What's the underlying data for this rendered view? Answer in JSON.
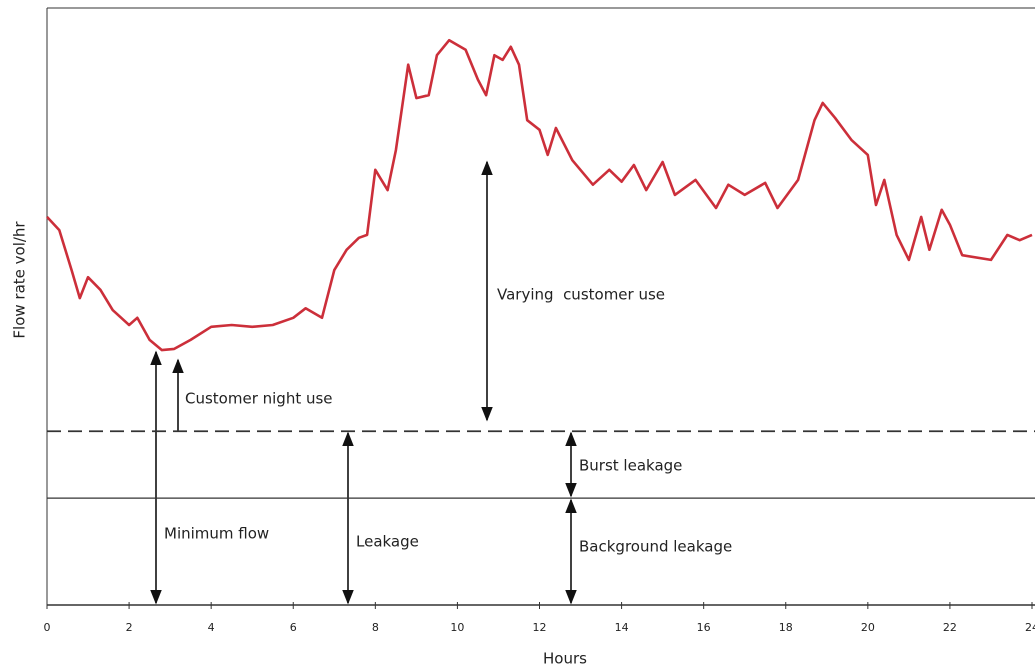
{
  "chart_data": {
    "type": "line",
    "x_label": "Hours",
    "y_label": "Flow rate vol/hr",
    "xlim": [
      0,
      24
    ],
    "xticks": [
      0,
      2,
      4,
      6,
      8,
      10,
      12,
      14,
      16,
      18,
      20,
      22,
      24
    ],
    "ylim": [
      0,
      100
    ],
    "x": [
      0,
      0.3,
      0.6,
      0.8,
      1.0,
      1.3,
      1.6,
      2.0,
      2.2,
      2.5,
      2.8,
      3.1,
      3.5,
      4.0,
      4.5,
      5.0,
      5.5,
      6.0,
      6.3,
      6.7,
      7.0,
      7.3,
      7.6,
      7.8,
      8.0,
      8.3,
      8.5,
      8.8,
      9.0,
      9.3,
      9.5,
      9.8,
      10.2,
      10.5,
      10.7,
      10.9,
      11.1,
      11.3,
      11.5,
      11.7,
      12.0,
      12.2,
      12.4,
      12.8,
      13.3,
      13.7,
      14.0,
      14.3,
      14.6,
      15.0,
      15.3,
      15.8,
      16.3,
      16.6,
      17.0,
      17.5,
      17.8,
      18.3,
      18.7,
      18.9,
      19.2,
      19.6,
      20.0,
      20.2,
      20.4,
      20.7,
      21.0,
      21.3,
      21.5,
      21.8,
      22.0,
      22.3,
      23.0,
      23.4,
      23.7,
      24.0
    ],
    "series": [
      {
        "color": "#cc2f3a",
        "values": [
          65.0,
          62.8,
          56.1,
          51.4,
          54.9,
          52.8,
          49.4,
          46.9,
          48.1,
          44.4,
          42.7,
          42.9,
          44.4,
          46.6,
          46.9,
          46.6,
          46.9,
          48.1,
          49.7,
          48.1,
          56.1,
          59.5,
          61.5,
          62.0,
          72.9,
          69.5,
          76.2,
          90.5,
          84.9,
          85.4,
          92.1,
          94.6,
          93.0,
          88.0,
          85.4,
          92.1,
          91.3,
          93.5,
          90.5,
          81.2,
          79.6,
          75.4,
          79.9,
          74.5,
          70.4,
          72.9,
          70.9,
          73.7,
          69.5,
          74.2,
          68.7,
          71.2,
          66.5,
          70.4,
          68.7,
          70.7,
          66.5,
          71.2,
          81.2,
          84.1,
          81.6,
          77.9,
          75.4,
          67.0,
          71.2,
          62.0,
          57.8,
          65.0,
          59.5,
          66.2,
          63.7,
          58.6,
          57.8,
          62.0,
          61.1,
          62.0
        ]
      }
    ],
    "reference_lines": [
      {
        "value": 29.1,
        "style": "dashed"
      },
      {
        "value": 17.9,
        "style": "solid"
      }
    ],
    "annotations": [
      "Varying  customer use",
      "Customer night use",
      "Burst leakage",
      "Minimum flow",
      "Leakage",
      "Background leakage"
    ]
  }
}
